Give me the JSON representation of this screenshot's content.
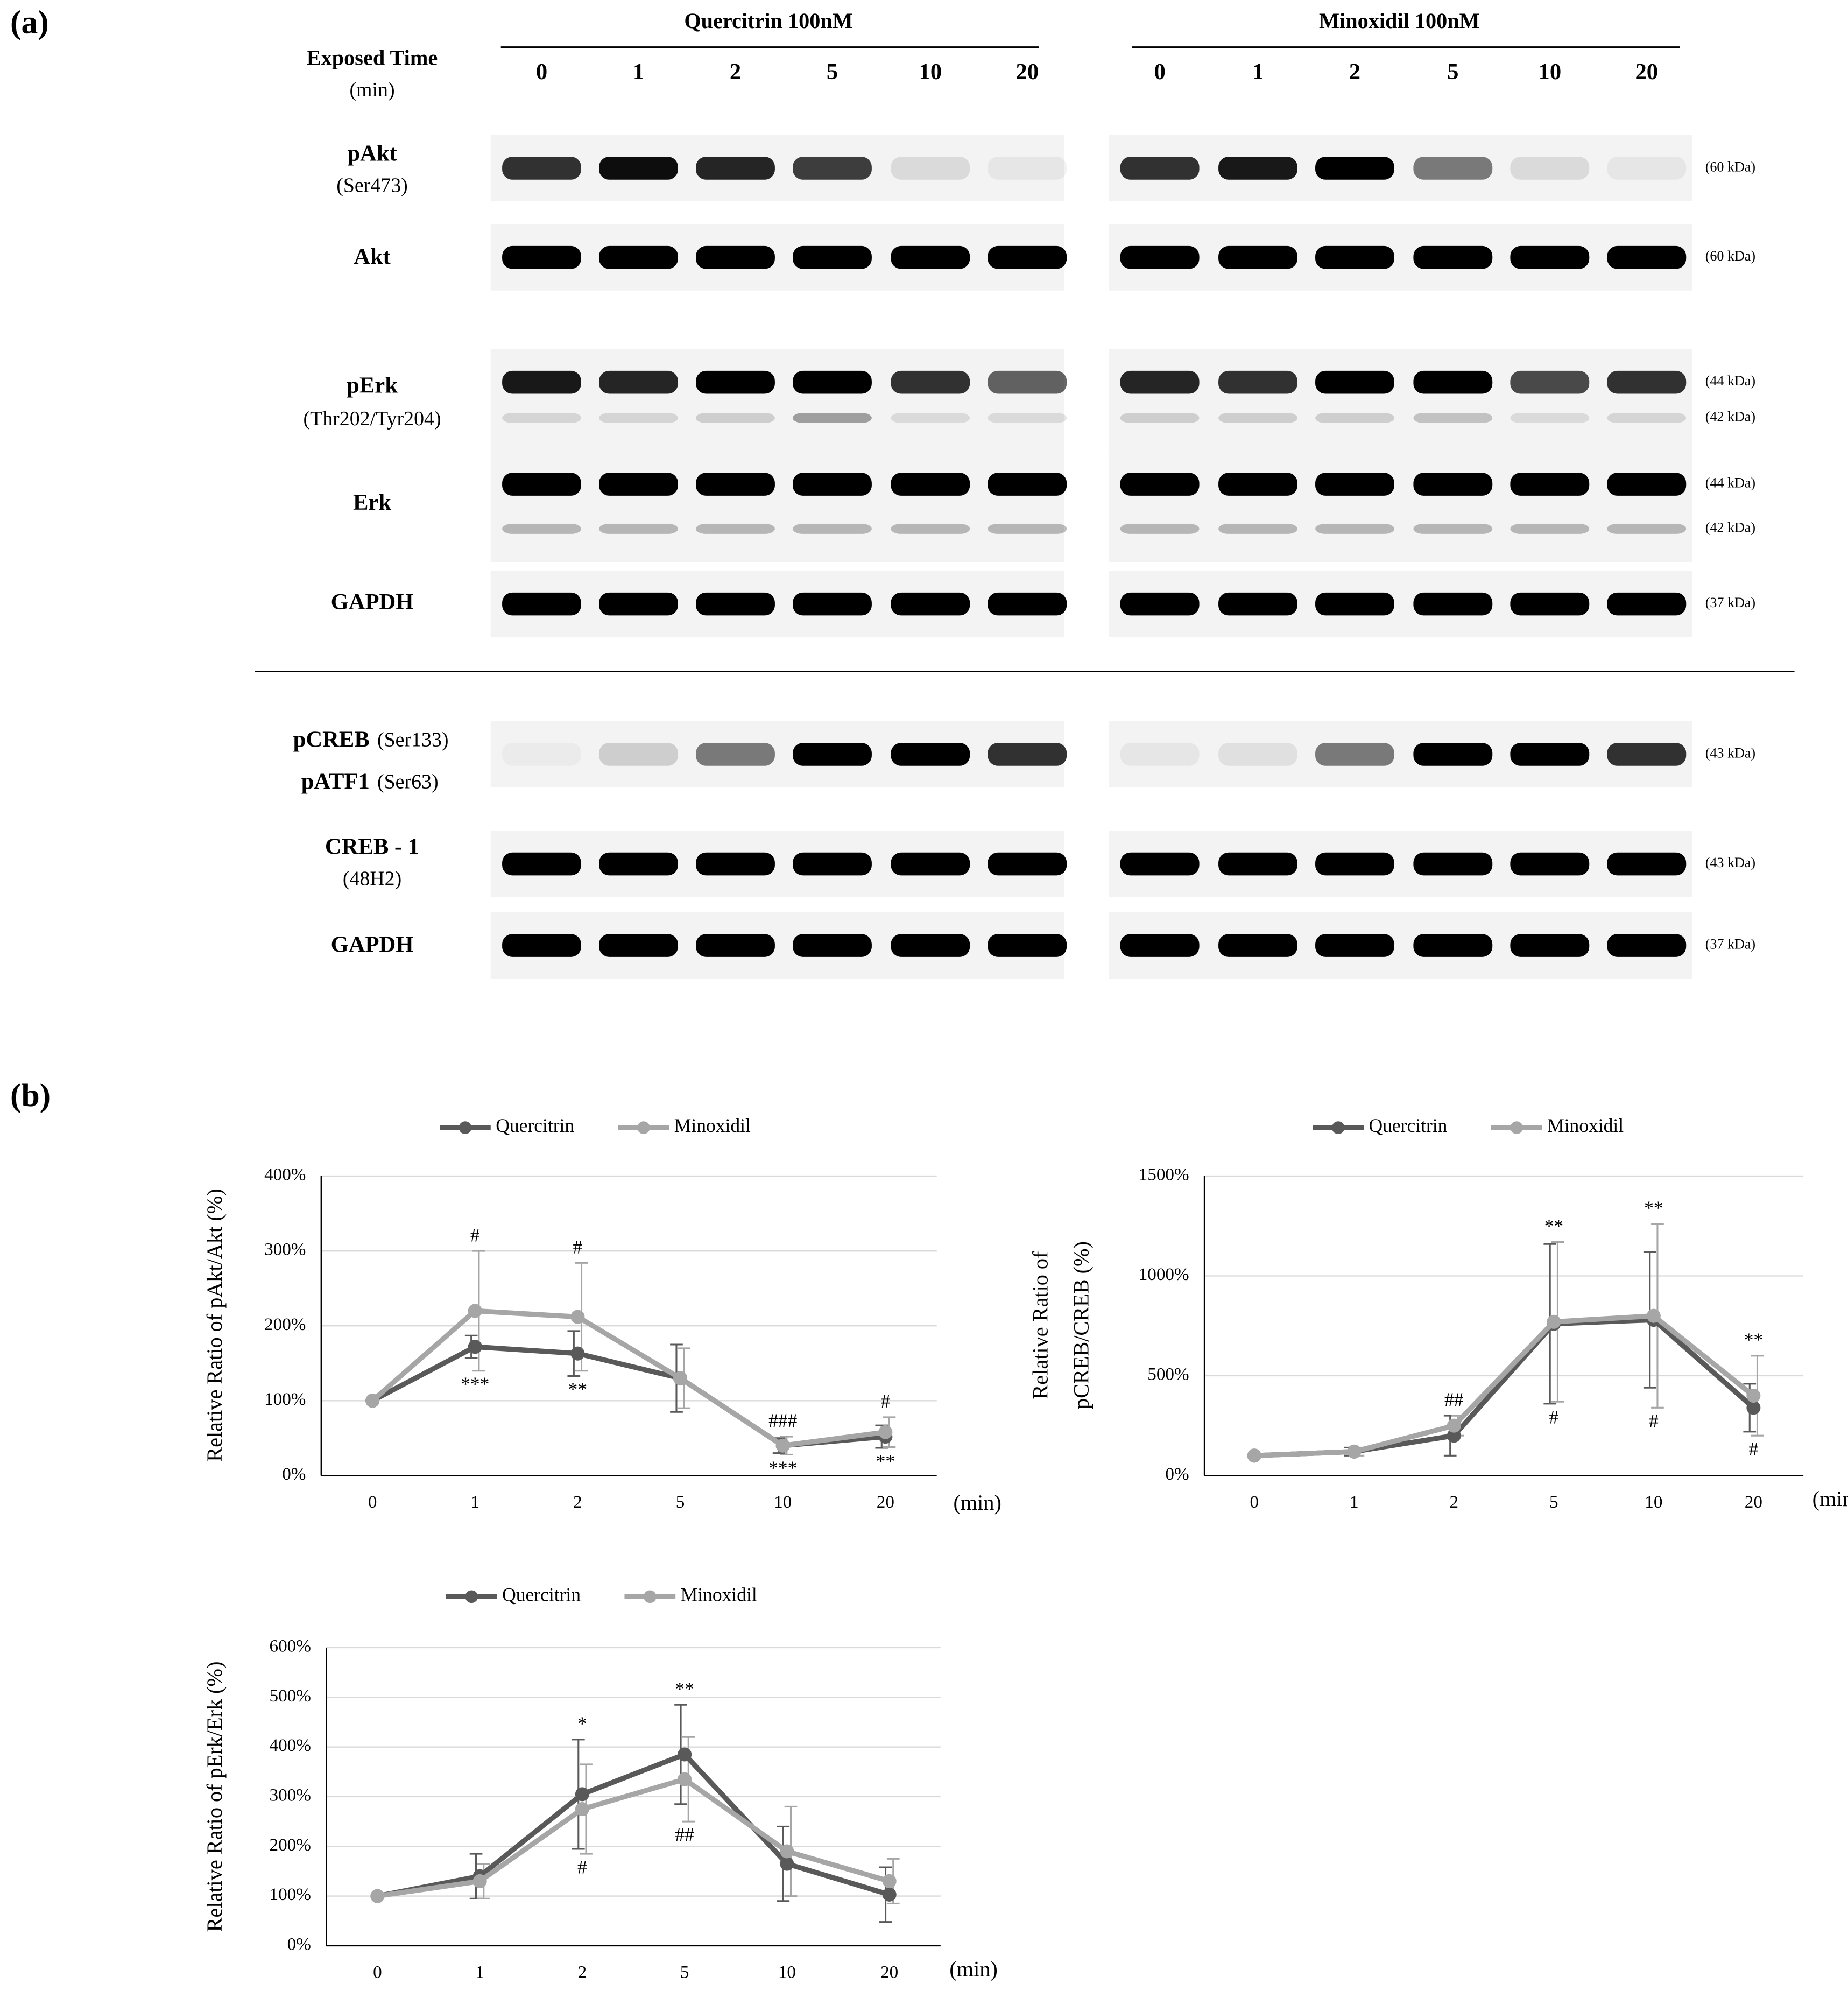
{
  "panel_labels": [
    "(a)",
    "(b)"
  ],
  "blot": {
    "groups": [
      "Quercitrin 100nM",
      "Minoxidil 100nM"
    ],
    "time_label": "Exposed Time",
    "time_unit": "(min)",
    "lanes": [
      "0",
      "1",
      "2",
      "5",
      "10",
      "20"
    ],
    "rows": [
      {
        "labels": [
          {
            "name": "pAkt",
            "detail": "(Ser473)"
          }
        ],
        "kda": [
          "(60 kDa)"
        ]
      },
      {
        "labels": [
          {
            "name": "Akt"
          }
        ],
        "kda": [
          "(60 kDa)"
        ]
      },
      {
        "labels": [
          {
            "name": "pErk",
            "detail": "(Thr202/Tyr204)"
          }
        ],
        "kda": [
          "(44 kDa)",
          "(42 kDa)"
        ]
      },
      {
        "labels": [
          {
            "name": "Erk"
          }
        ],
        "kda": [
          "(44 kDa)",
          "(42 kDa)"
        ]
      },
      {
        "labels": [
          {
            "name": "GAPDH"
          }
        ],
        "kda": [
          "(37 kDa)"
        ]
      },
      {
        "labels": [
          {
            "name": "pCREB",
            "detail": "(Ser133)"
          },
          {
            "name": "pATF1",
            "detail": "(Ser63)"
          }
        ],
        "kda": [
          "(43 kDa)"
        ]
      },
      {
        "labels": [
          {
            "name": "CREB - 1",
            "detail": "(48H2)"
          }
        ],
        "kda": [
          "(43 kDa)"
        ]
      },
      {
        "labels": [
          {
            "name": "GAPDH"
          }
        ],
        "kda": [
          "(37 kDa)"
        ]
      }
    ]
  },
  "chart_data": [
    {
      "type": "line",
      "ylabel": [
        "Relative Ratio of pAkt/Akt (%)"
      ],
      "xlabel": "(min)",
      "categories": [
        "0",
        "1",
        "2",
        "5",
        "10",
        "20"
      ],
      "series": [
        {
          "name": "Quercitrin",
          "color": "#595959",
          "values": [
            100,
            172,
            163,
            130,
            40,
            52
          ],
          "errors": [
            0,
            15,
            30,
            45,
            10,
            15
          ]
        },
        {
          "name": "Minoxidil",
          "color": "#a6a6a6",
          "values": [
            100,
            220,
            212,
            130,
            40,
            58
          ],
          "errors": [
            0,
            80,
            72,
            40,
            12,
            20
          ]
        }
      ],
      "annotations_above": [
        null,
        "#",
        "#",
        null,
        "###",
        "#"
      ],
      "annotations_below": [
        null,
        "***",
        "**",
        null,
        "***",
        "**"
      ],
      "ylim": [
        0,
        400
      ],
      "yticks": [
        {
          "value": 0,
          "label": "0%"
        },
        {
          "value": 100,
          "label": "100%"
        },
        {
          "value": 200,
          "label": "200%"
        },
        {
          "value": 300,
          "label": "300%"
        },
        {
          "value": 400,
          "label": "400%"
        }
      ],
      "grid": true
    },
    {
      "type": "line",
      "ylabel": [
        "Relative Ratio of",
        "pCREB/CREB (%)"
      ],
      "xlabel": "(min)",
      "categories": [
        "0",
        "1",
        "2",
        "5",
        "10",
        "20"
      ],
      "series": [
        {
          "name": "Quercitrin",
          "color": "#595959",
          "values": [
            100,
            120,
            200,
            760,
            780,
            340
          ],
          "errors": [
            0,
            20,
            100,
            400,
            340,
            120
          ]
        },
        {
          "name": "Minoxidil",
          "color": "#a6a6a6",
          "values": [
            100,
            120,
            250,
            770,
            800,
            400
          ],
          "errors": [
            0,
            20,
            50,
            400,
            460,
            200
          ]
        }
      ],
      "annotations_above": [
        null,
        null,
        "##",
        "**",
        "**",
        "**"
      ],
      "annotations_below": [
        null,
        null,
        null,
        "#",
        "#",
        "#"
      ],
      "ylim": [
        0,
        1500
      ],
      "yticks": [
        {
          "value": 0,
          "label": "0%"
        },
        {
          "value": 500,
          "label": "500%"
        },
        {
          "value": 1000,
          "label": "1000%"
        },
        {
          "value": 1500,
          "label": "1500%"
        }
      ],
      "grid": true
    },
    {
      "type": "line",
      "ylabel": [
        "Relative Ratio of pErk/Erk (%)"
      ],
      "xlabel": "(min)",
      "categories": [
        "0",
        "1",
        "2",
        "5",
        "10",
        "20"
      ],
      "series": [
        {
          "name": "Quercitrin",
          "color": "#595959",
          "values": [
            100,
            140,
            305,
            385,
            165,
            103
          ],
          "errors": [
            0,
            45,
            110,
            100,
            75,
            55
          ]
        },
        {
          "name": "Minoxidil",
          "color": "#a6a6a6",
          "values": [
            100,
            130,
            275,
            335,
            190,
            130
          ],
          "errors": [
            0,
            35,
            90,
            85,
            90,
            45
          ]
        }
      ],
      "annotations_above": [
        null,
        null,
        "*",
        "**",
        null,
        null
      ],
      "annotations_below": [
        null,
        null,
        "#",
        "##",
        null,
        null
      ],
      "ylim": [
        0,
        600
      ],
      "yticks": [
        {
          "value": 0,
          "label": "0%"
        },
        {
          "value": 100,
          "label": "100%"
        },
        {
          "value": 200,
          "label": "200%"
        },
        {
          "value": 300,
          "label": "300%"
        },
        {
          "value": 400,
          "label": "400%"
        },
        {
          "value": 500,
          "label": "500%"
        },
        {
          "value": 600,
          "label": "600%"
        }
      ],
      "grid": true
    }
  ]
}
